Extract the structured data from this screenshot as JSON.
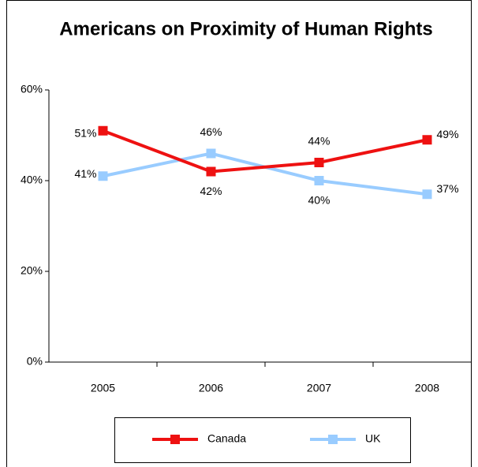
{
  "chart_data": {
    "type": "line",
    "title": "Americans on Proximity of Human Rights",
    "categories": [
      "2005",
      "2006",
      "2007",
      "2008"
    ],
    "series": [
      {
        "name": "Canada",
        "color": "#ee1111",
        "values": [
          51,
          42,
          44,
          49
        ]
      },
      {
        "name": "UK",
        "color": "#99ccff",
        "values": [
          41,
          46,
          40,
          37
        ]
      }
    ],
    "value_labels": [
      [
        "51%",
        "42%",
        "44%",
        "49%"
      ],
      [
        "41%",
        "46%",
        "40%",
        "37%"
      ]
    ],
    "ylim": [
      0,
      60
    ],
    "yticks": [
      {
        "value": 0,
        "label": "0%"
      },
      {
        "value": 20,
        "label": "20%"
      },
      {
        "value": 40,
        "label": "40%"
      },
      {
        "value": 60,
        "label": "60%"
      }
    ],
    "legend": "bottom"
  }
}
